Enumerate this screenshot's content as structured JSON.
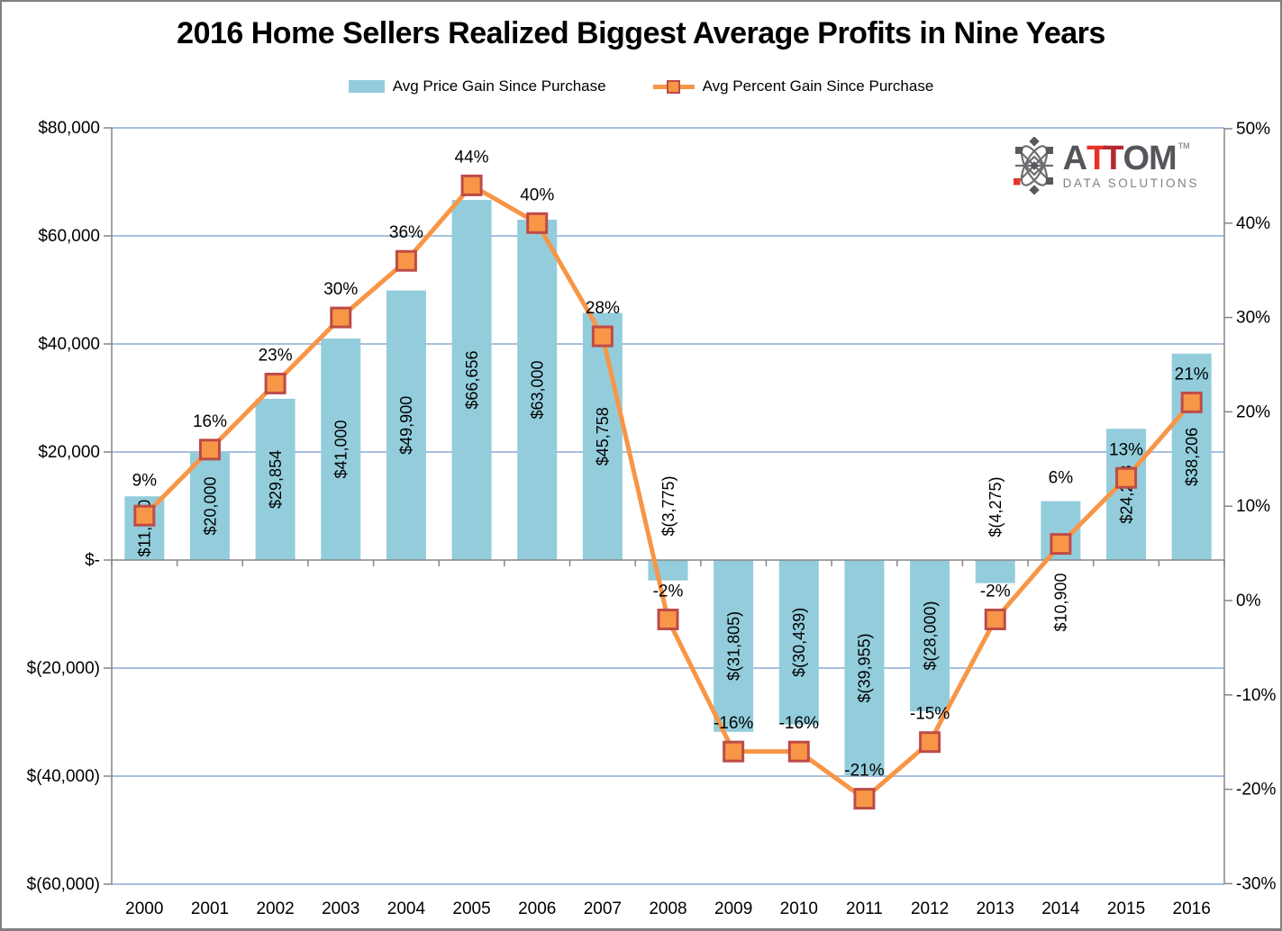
{
  "title": "2016 Home Sellers Realized Biggest Average Profits in Nine Years",
  "legend": {
    "items": [
      {
        "label": "Avg Price Gain Since Purchase",
        "type": "bar"
      },
      {
        "label": "Avg Percent Gain Since Purchase",
        "type": "line"
      }
    ]
  },
  "logo": {
    "brand_a": "A",
    "brand_t1": "T",
    "brand_t2": "T",
    "brand_om": "OM",
    "trademark": "TM",
    "subtitle": "DATA SOLUTIONS"
  },
  "colors": {
    "bar_fill": "#93CDDC",
    "line_stroke": "#F79646",
    "marker_fill": "#F79646",
    "marker_border": "#BE4B48",
    "gridline": "#A7BFDE",
    "axis_line": "#868686",
    "text": "#000000"
  },
  "chart_data": {
    "type": "bar",
    "subtype": "combo-bar-line",
    "categories": [
      "2000",
      "2001",
      "2002",
      "2003",
      "2004",
      "2005",
      "2006",
      "2007",
      "2008",
      "2009",
      "2010",
      "2011",
      "2012",
      "2013",
      "2014",
      "2015",
      "2016"
    ],
    "series": [
      {
        "name": "Avg Price Gain Since Purchase",
        "type": "bar",
        "axis": "left",
        "values": [
          11800,
          20000,
          29854,
          41000,
          49900,
          66656,
          63000,
          45758,
          -3775,
          -31805,
          -30439,
          -39955,
          -28000,
          -4275,
          10900,
          24288,
          38206
        ],
        "labels": [
          "$11,800",
          "$20,000",
          "$29,854",
          "$41,000",
          "$49,900",
          "$66,656",
          "$63,000",
          "$45,758",
          "$(3,775)",
          "$(31,805)",
          "$(30,439)",
          "$(39,955)",
          "$(28,000)",
          "$(4,275)",
          "$10,900",
          "$24,288",
          "$38,206"
        ]
      },
      {
        "name": "Avg Percent Gain Since Purchase",
        "type": "line",
        "axis": "right",
        "values": [
          9,
          16,
          23,
          30,
          36,
          44,
          40,
          28,
          -2,
          -16,
          -16,
          -21,
          -15,
          -2,
          6,
          13,
          21
        ],
        "labels": [
          "9%",
          "16%",
          "23%",
          "30%",
          "36%",
          "44%",
          "40%",
          "28%",
          "-2%",
          "-16%",
          "-16%",
          "-21%",
          "-15%",
          "-2%",
          "6%",
          "13%",
          "21%"
        ]
      }
    ],
    "left_axis": {
      "ticks": [
        "$80,000",
        "$60,000",
        "$40,000",
        "$20,000",
        "$-",
        "$(20,000)",
        "$(40,000)",
        "$(60,000)"
      ],
      "max": 80000,
      "min": -60000,
      "step": 20000
    },
    "right_axis": {
      "ticks": [
        "50%",
        "40%",
        "30%",
        "20%",
        "10%",
        "0%",
        "-10%",
        "-20%",
        "-30%"
      ],
      "max": 50,
      "min": -30,
      "step": 10
    },
    "grid": true,
    "legend_position": "top"
  }
}
